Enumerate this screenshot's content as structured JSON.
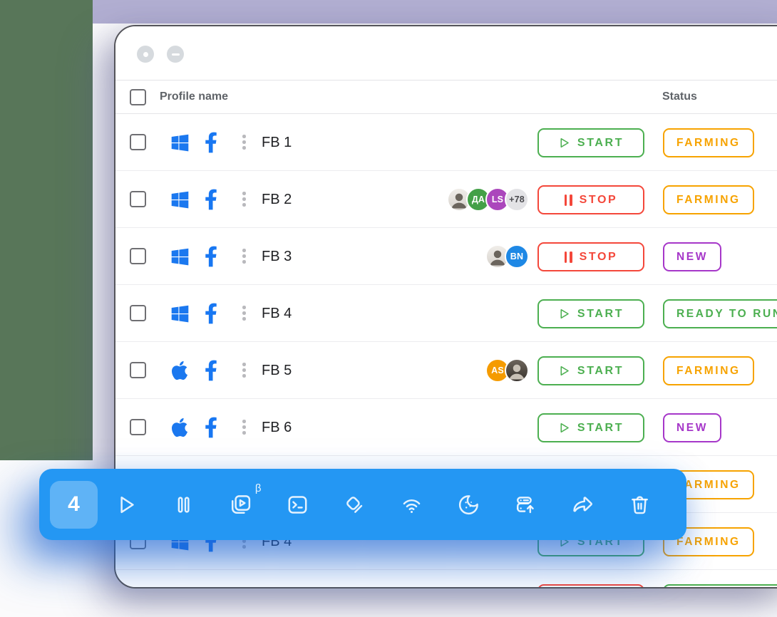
{
  "header": {
    "profile_name": "Profile name",
    "status": "Status"
  },
  "actions": {
    "start": "START",
    "stop": "STOP"
  },
  "rows": [
    {
      "name": "FB 1",
      "os": "windows",
      "avatars": [],
      "action": "start",
      "status": {
        "label": "FARMING",
        "color": "orange"
      }
    },
    {
      "name": "FB 2",
      "os": "windows",
      "avatars": [
        {
          "type": "photo",
          "text": ""
        },
        {
          "type": "initials",
          "text": "ДА",
          "bg": "#43a047"
        },
        {
          "type": "initials",
          "text": "LS",
          "bg": "#ab47bc"
        },
        {
          "type": "count",
          "text": "+78"
        }
      ],
      "action": "stop",
      "status": {
        "label": "FARMING",
        "color": "orange"
      }
    },
    {
      "name": "FB 3",
      "os": "windows",
      "avatars": [
        {
          "type": "photo",
          "text": ""
        },
        {
          "type": "initials",
          "text": "BN",
          "bg": "#1e88e5"
        }
      ],
      "action": "stop",
      "status": {
        "label": "NEW",
        "color": "purple"
      }
    },
    {
      "name": "FB 4",
      "os": "windows",
      "avatars": [],
      "action": "start",
      "status": {
        "label": "READY TO RUN",
        "color": "green"
      }
    },
    {
      "name": "FB 5",
      "os": "apple",
      "avatars": [
        {
          "type": "initials",
          "text": "AS",
          "bg": "#f59b00"
        },
        {
          "type": "photo_dark",
          "text": ""
        }
      ],
      "action": "start",
      "status": {
        "label": "FARMING",
        "color": "orange"
      }
    },
    {
      "name": "FB 6",
      "os": "apple",
      "avatars": [],
      "action": "start",
      "status": {
        "label": "NEW",
        "color": "purple"
      }
    },
    {
      "name": "",
      "os": "windows",
      "avatars": [],
      "action": "start",
      "status": {
        "label": "FARMING",
        "color": "orange"
      }
    },
    {
      "name": "FB 4",
      "os": "windows",
      "avatars": [],
      "action": "start",
      "status": {
        "label": "FARMING",
        "color": "orange"
      }
    },
    {
      "name": "",
      "os": "apple",
      "avatars": [
        {
          "type": "blank",
          "text": "",
          "bg": "#d9d9dc"
        },
        {
          "type": "blank",
          "text": "",
          "bg": "#43a047"
        },
        {
          "type": "blank",
          "text": "",
          "bg": "#1e88e5"
        }
      ],
      "action": "stop",
      "status": {
        "label": "",
        "color": "green"
      }
    }
  ],
  "toolbar": {
    "selected_count": "4",
    "beta_label": "β",
    "buttons": [
      {
        "name": "play"
      },
      {
        "name": "pause"
      },
      {
        "name": "automation"
      },
      {
        "name": "terminal"
      },
      {
        "name": "tags"
      },
      {
        "name": "wifi"
      },
      {
        "name": "cookie"
      },
      {
        "name": "proxy-upload"
      },
      {
        "name": "share"
      },
      {
        "name": "trash"
      }
    ]
  },
  "colors": {
    "start_green": "#4caf50",
    "stop_red": "#f4473a",
    "farming_orange": "#f7a300",
    "new_purple": "#a637c9",
    "toolbar_blue": "#2497f3",
    "brand_blue": "#1877f2",
    "bg_left_green": "#587659",
    "bg_top_lavender": "#b1aed1"
  }
}
